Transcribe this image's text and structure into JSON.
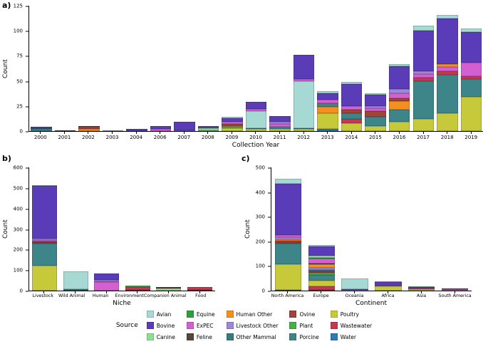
{
  "figure": {
    "panel_a_label": "a)",
    "panel_b_label": "b)",
    "panel_c_label": "c)",
    "legend_title": "Source"
  },
  "colors": {
    "Avian": "#a6d8d4",
    "Bovine": "#5b3cb8",
    "Canine": "#8de08d",
    "Equine": "#2f9e41",
    "ExPEC": "#d45fd0",
    "Feline": "#564539",
    "Human Other": "#f39020",
    "Livestock Other": "#9d87d6",
    "Other Mammal": "#3a7a78",
    "Ovine": "#a14338",
    "Plant": "#49ad49",
    "Porcine": "#3e8589",
    "Poultry": "#c6c93a",
    "Wastewater": "#c23a50",
    "Water": "#2b7cb8"
  },
  "legend_items": [
    "Avian",
    "Bovine",
    "Canine",
    "Equine",
    "ExPEC",
    "Feline",
    "Human Other",
    "Livestock Other",
    "Other Mammal",
    "Ovine",
    "Plant",
    "Porcine",
    "Poultry",
    "Wastewater",
    "Water"
  ],
  "chart_data": [
    {
      "id": "a",
      "type": "bar",
      "stacked": true,
      "title": "",
      "xlabel": "Collection Year",
      "ylabel": "Count",
      "ylim": [
        0,
        125
      ],
      "yticks": [
        0,
        25,
        50,
        75,
        100,
        125
      ],
      "grid": false,
      "legend_position": "bottom-shared",
      "bar_width_pct": 88,
      "categories": [
        "2000",
        "2001",
        "2002",
        "2003",
        "2004",
        "2006",
        "2007",
        "2008",
        "2009",
        "2010",
        "2011",
        "2012",
        "2013",
        "2014",
        "2015",
        "2016",
        "2017",
        "2018",
        "2019"
      ],
      "bars": [
        {
          "category": "2000",
          "total": 4,
          "segments": [
            {
              "source": "Porcine",
              "value": 2
            },
            {
              "source": "Other Mammal",
              "value": 1
            },
            {
              "source": "Bovine",
              "value": 1
            }
          ]
        },
        {
          "category": "2001",
          "total": 1,
          "segments": [
            {
              "source": "Bovine",
              "value": 1
            }
          ]
        },
        {
          "category": "2002",
          "total": 5,
          "segments": [
            {
              "source": "Human Other",
              "value": 2
            },
            {
              "source": "Ovine",
              "value": 2
            },
            {
              "source": "Bovine",
              "value": 1
            }
          ]
        },
        {
          "category": "2003",
          "total": 1,
          "segments": [
            {
              "source": "Poultry",
              "value": 1
            }
          ]
        },
        {
          "category": "2004",
          "total": 2,
          "segments": [
            {
              "source": "Bovine",
              "value": 2
            }
          ]
        },
        {
          "category": "2006",
          "total": 5,
          "segments": [
            {
              "source": "ExPEC",
              "value": 2
            },
            {
              "source": "Bovine",
              "value": 3
            }
          ]
        },
        {
          "category": "2007",
          "total": 9,
          "segments": [
            {
              "source": "ExPEC",
              "value": 1
            },
            {
              "source": "Bovine",
              "value": 8
            }
          ]
        },
        {
          "category": "2008",
          "total": 5,
          "segments": [
            {
              "source": "Poultry",
              "value": 1
            },
            {
              "source": "Canine",
              "value": 2
            },
            {
              "source": "Bovine",
              "value": 2
            }
          ]
        },
        {
          "category": "2009",
          "total": 14,
          "segments": [
            {
              "source": "Poultry",
              "value": 3
            },
            {
              "source": "Plant",
              "value": 2
            },
            {
              "source": "Ovine",
              "value": 2
            },
            {
              "source": "ExPEC",
              "value": 2
            },
            {
              "source": "Bovine",
              "value": 4
            },
            {
              "source": "Avian",
              "value": 1
            }
          ]
        },
        {
          "category": "2010",
          "total": 29,
          "segments": [
            {
              "source": "Poultry",
              "value": 2
            },
            {
              "source": "Porcine",
              "value": 1
            },
            {
              "source": "Avian",
              "value": 17
            },
            {
              "source": "ExPEC",
              "value": 2
            },
            {
              "source": "Bovine",
              "value": 7
            }
          ]
        },
        {
          "category": "2011",
          "total": 15,
          "segments": [
            {
              "source": "Poultry",
              "value": 2
            },
            {
              "source": "Porcine",
              "value": 2
            },
            {
              "source": "ExPEC",
              "value": 3
            },
            {
              "source": "Livestock Other",
              "value": 2
            },
            {
              "source": "Bovine",
              "value": 6
            }
          ]
        },
        {
          "category": "2012",
          "total": 76,
          "segments": [
            {
              "source": "Poultry",
              "value": 2
            },
            {
              "source": "Porcine",
              "value": 1
            },
            {
              "source": "Avian",
              "value": 47
            },
            {
              "source": "ExPEC",
              "value": 2
            },
            {
              "source": "Bovine",
              "value": 24
            }
          ]
        },
        {
          "category": "2013",
          "total": 40,
          "segments": [
            {
              "source": "Water",
              "value": 2
            },
            {
              "source": "Poultry",
              "value": 16
            },
            {
              "source": "Human Other",
              "value": 6
            },
            {
              "source": "Porcine",
              "value": 4
            },
            {
              "source": "ExPEC",
              "value": 3
            },
            {
              "source": "Bovine",
              "value": 7
            },
            {
              "source": "Avian",
              "value": 2
            }
          ]
        },
        {
          "category": "2014",
          "total": 49,
          "segments": [
            {
              "source": "Poultry",
              "value": 8
            },
            {
              "source": "Wastewater",
              "value": 4
            },
            {
              "source": "Porcine",
              "value": 6
            },
            {
              "source": "Ovine",
              "value": 3
            },
            {
              "source": "ExPEC",
              "value": 4
            },
            {
              "source": "Bovine",
              "value": 22
            },
            {
              "source": "Avian",
              "value": 2
            }
          ]
        },
        {
          "category": "2015",
          "total": 38,
          "segments": [
            {
              "source": "Poultry",
              "value": 5
            },
            {
              "source": "Porcine",
              "value": 9
            },
            {
              "source": "Ovine",
              "value": 6
            },
            {
              "source": "ExPEC",
              "value": 3
            },
            {
              "source": "Livestock Other",
              "value": 2
            },
            {
              "source": "Bovine",
              "value": 11
            },
            {
              "source": "Avian",
              "value": 2
            }
          ]
        },
        {
          "category": "2016",
          "total": 67,
          "segments": [
            {
              "source": "Poultry",
              "value": 9
            },
            {
              "source": "Porcine",
              "value": 12
            },
            {
              "source": "Human Other",
              "value": 9
            },
            {
              "source": "Ovine",
              "value": 3
            },
            {
              "source": "ExPEC",
              "value": 5
            },
            {
              "source": "Livestock Other",
              "value": 4
            },
            {
              "source": "Bovine",
              "value": 23
            },
            {
              "source": "Avian",
              "value": 2
            }
          ]
        },
        {
          "category": "2017",
          "total": 105,
          "segments": [
            {
              "source": "Poultry",
              "value": 12
            },
            {
              "source": "Porcine",
              "value": 38
            },
            {
              "source": "Wastewater",
              "value": 3
            },
            {
              "source": "ExPEC",
              "value": 4
            },
            {
              "source": "Livestock Other",
              "value": 3
            },
            {
              "source": "Bovine",
              "value": 40
            },
            {
              "source": "Avian",
              "value": 5
            }
          ]
        },
        {
          "category": "2018",
          "total": 116,
          "segments": [
            {
              "source": "Poultry",
              "value": 18
            },
            {
              "source": "Porcine",
              "value": 38
            },
            {
              "source": "Wastewater",
              "value": 4
            },
            {
              "source": "ExPEC",
              "value": 4
            },
            {
              "source": "Human Other",
              "value": 3
            },
            {
              "source": "Bovine",
              "value": 45
            },
            {
              "source": "Avian",
              "value": 4
            }
          ]
        },
        {
          "category": "2019",
          "total": 102,
          "segments": [
            {
              "source": "Poultry",
              "value": 34
            },
            {
              "source": "Porcine",
              "value": 18
            },
            {
              "source": "Wastewater",
              "value": 3
            },
            {
              "source": "ExPEC",
              "value": 13
            },
            {
              "source": "Bovine",
              "value": 31
            },
            {
              "source": "Avian",
              "value": 3
            }
          ]
        }
      ]
    },
    {
      "id": "b",
      "type": "bar",
      "stacked": true,
      "title": "",
      "xlabel": "Niche",
      "ylabel": "Count",
      "ylim": [
        0,
        600
      ],
      "yticks": [
        0,
        100,
        200,
        300,
        400,
        500,
        600
      ],
      "grid": false,
      "legend_position": "bottom-shared",
      "bar_width_pct": 80,
      "categories": [
        "Livestock",
        "Wild Animal",
        "Human",
        "Environment",
        "Companion Animal",
        "Food"
      ],
      "bars": [
        {
          "category": "Livestock",
          "total": 515,
          "segments": [
            {
              "source": "Poultry",
              "value": 122
            },
            {
              "source": "Porcine",
              "value": 106
            },
            {
              "source": "Ovine",
              "value": 8
            },
            {
              "source": "Wastewater",
              "value": 4
            },
            {
              "source": "ExPEC",
              "value": 6
            },
            {
              "source": "Livestock Other",
              "value": 9
            },
            {
              "source": "Bovine",
              "value": 255
            },
            {
              "source": "Avian",
              "value": 5
            }
          ]
        },
        {
          "category": "Wild Animal",
          "total": 95,
          "segments": [
            {
              "source": "Other Mammal",
              "value": 6
            },
            {
              "source": "Avian",
              "value": 87
            },
            {
              "source": "Bovine",
              "value": 2
            }
          ]
        },
        {
          "category": "Human",
          "total": 85,
          "segments": [
            {
              "source": "ExPEC",
              "value": 40
            },
            {
              "source": "Human Other",
              "value": 6
            },
            {
              "source": "Livestock Other",
              "value": 6
            },
            {
              "source": "Bovine",
              "value": 33
            }
          ]
        },
        {
          "category": "Environment",
          "total": 25,
          "segments": [
            {
              "source": "Water",
              "value": 4
            },
            {
              "source": "Wastewater",
              "value": 15
            },
            {
              "source": "Plant",
              "value": 6
            }
          ]
        },
        {
          "category": "Companion Animal",
          "total": 18,
          "segments": [
            {
              "source": "Canine",
              "value": 11
            },
            {
              "source": "Feline",
              "value": 7
            }
          ]
        },
        {
          "category": "Food",
          "total": 18,
          "segments": [
            {
              "source": "Ovine",
              "value": 3
            },
            {
              "source": "Wastewater",
              "value": 15
            }
          ]
        }
      ]
    },
    {
      "id": "c",
      "type": "bar",
      "stacked": true,
      "title": "",
      "xlabel": "Continent",
      "ylabel": "Count",
      "ylim": [
        0,
        500
      ],
      "yticks": [
        0,
        100,
        200,
        300,
        400,
        500
      ],
      "grid": false,
      "legend_position": "bottom-shared",
      "bar_width_pct": 80,
      "categories": [
        "North America",
        "Europe",
        "Oceania",
        "Africa",
        "Asia",
        "South America"
      ],
      "bars": [
        {
          "category": "North America",
          "total": 455,
          "segments": [
            {
              "source": "Water",
              "value": 4
            },
            {
              "source": "Poultry",
              "value": 102
            },
            {
              "source": "Porcine",
              "value": 86
            },
            {
              "source": "Ovine",
              "value": 6
            },
            {
              "source": "Wastewater",
              "value": 4
            },
            {
              "source": "Human Other",
              "value": 6
            },
            {
              "source": "Livestock Other",
              "value": 8
            },
            {
              "source": "ExPEC",
              "value": 10
            },
            {
              "source": "Bovine",
              "value": 207
            },
            {
              "source": "Avian",
              "value": 22
            }
          ]
        },
        {
          "category": "Europe",
          "total": 185,
          "segments": [
            {
              "source": "Water",
              "value": 3
            },
            {
              "source": "Wastewater",
              "value": 14
            },
            {
              "source": "Poultry",
              "value": 24
            },
            {
              "source": "Porcine",
              "value": 24
            },
            {
              "source": "Plant",
              "value": 6
            },
            {
              "source": "Ovine",
              "value": 8
            },
            {
              "source": "Other Mammal",
              "value": 5
            },
            {
              "source": "Livestock Other",
              "value": 8
            },
            {
              "source": "Human Other",
              "value": 14
            },
            {
              "source": "Feline",
              "value": 4
            },
            {
              "source": "ExPEC",
              "value": 19
            },
            {
              "source": "Equine",
              "value": 5
            },
            {
              "source": "Canine",
              "value": 9
            },
            {
              "source": "Bovine",
              "value": 37
            },
            {
              "source": "Avian",
              "value": 5
            }
          ]
        },
        {
          "category": "Oceania",
          "total": 50,
          "segments": [
            {
              "source": "Poultry",
              "value": 3
            },
            {
              "source": "Bovine",
              "value": 2
            },
            {
              "source": "Avian",
              "value": 45
            }
          ]
        },
        {
          "category": "Africa",
          "total": 38,
          "segments": [
            {
              "source": "Poultry",
              "value": 16
            },
            {
              "source": "Human Other",
              "value": 2
            },
            {
              "source": "ExPEC",
              "value": 3
            },
            {
              "source": "Bovine",
              "value": 14
            },
            {
              "source": "Avian",
              "value": 3
            }
          ]
        },
        {
          "category": "Asia",
          "total": 18,
          "segments": [
            {
              "source": "Poultry",
              "value": 6
            },
            {
              "source": "Porcine",
              "value": 3
            },
            {
              "source": "ExPEC",
              "value": 3
            },
            {
              "source": "Bovine",
              "value": 4
            },
            {
              "source": "Avian",
              "value": 2
            }
          ]
        },
        {
          "category": "South America",
          "total": 10,
          "segments": [
            {
              "source": "Poultry",
              "value": 3
            },
            {
              "source": "ExPEC",
              "value": 2
            },
            {
              "source": "Bovine",
              "value": 4
            },
            {
              "source": "Avian",
              "value": 1
            }
          ]
        }
      ]
    }
  ]
}
